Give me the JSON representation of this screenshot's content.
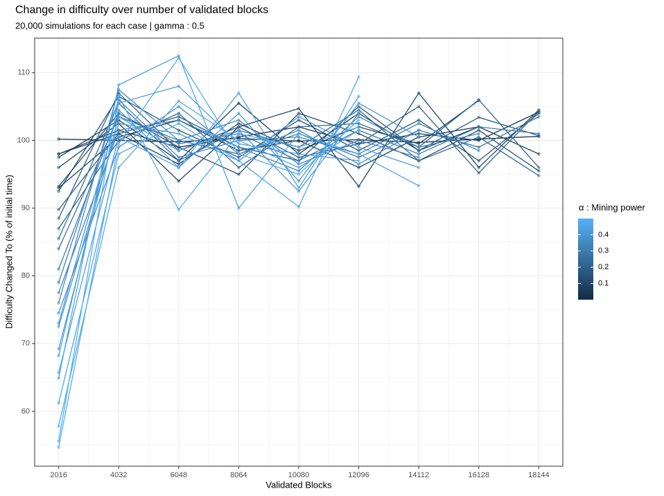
{
  "chart_data": {
    "type": "line",
    "title": "Change in difficulty over number of validated blocks",
    "subtitle": "20,000 simulations for each case | gamma : 0.5",
    "x_label": "Validated Blocks",
    "y_label": "Difficulty Changed To (% of initial time)",
    "x": [
      2016,
      4032,
      6048,
      8064,
      10080,
      12096,
      14112,
      16128,
      18144
    ],
    "xlim": [
      1210,
      18950
    ],
    "xticks": [
      2016,
      4032,
      6048,
      8064,
      10080,
      12096,
      14112,
      16128,
      18144
    ],
    "ylim": [
      51.9,
      115.1
    ],
    "yticks": [
      60,
      70,
      80,
      90,
      100,
      110
    ],
    "grid": true,
    "legend": {
      "title": "α : Mining power",
      "position": "right",
      "lim": [
        0.0,
        0.5
      ],
      "ticks": [
        0.1,
        0.2,
        0.3,
        0.4
      ],
      "colors": [
        "#132B43",
        "#56B1F7"
      ]
    },
    "series": [
      {
        "alpha": 0.02,
        "values": [
          100.2,
          100,
          99.8,
          100.3,
          99.9,
          100.1,
          99.7,
          100.2,
          100.6
        ]
      },
      {
        "alpha": 0.05,
        "values": [
          98,
          101.5,
          99,
          100.5,
          102,
          99.5,
          101,
          100,
          104.2
        ]
      },
      {
        "alpha": 0.06,
        "values": [
          93,
          100.5,
          103,
          98.5,
          100,
          96,
          100.5,
          102,
          null
        ]
      },
      {
        "alpha": 0.08,
        "values": [
          97.5,
          103,
          97,
          105.5,
          98,
          104,
          98.5,
          102,
          98
        ]
      },
      {
        "alpha": 0.09,
        "values": [
          98,
          101,
          96.5,
          102.5,
          98.5,
          102,
          99.5,
          105.9,
          null
        ]
      },
      {
        "alpha": 0.1,
        "values": [
          96,
          102.5,
          94,
          102,
          104.7,
          93.2,
          107,
          96,
          104.5
        ]
      },
      {
        "alpha": 0.12,
        "values": [
          93.2,
          104,
          99,
          95,
          104,
          101,
          97,
          101.5,
          95.5
        ]
      },
      {
        "alpha": 0.15,
        "values": [
          92.5,
          106.5,
          101.5,
          97.5,
          103,
          98.5,
          103,
          97,
          104
        ]
      },
      {
        "alpha": 0.18,
        "values": [
          89.8,
          101,
          103.5,
          99,
          97,
          105,
          98.5,
          103.4,
          100.7
        ]
      },
      {
        "alpha": 0.2,
        "values": [
          88.5,
          107,
          98.5,
          102,
          97.5,
          99.5,
          105,
          95.2,
          104.3
        ]
      },
      {
        "alpha": 0.22,
        "values": [
          87,
          100,
          104,
          96,
          102,
          102.5,
          99,
          106,
          96
        ]
      },
      {
        "alpha": 0.25,
        "values": [
          85.5,
          105.5,
          97,
          101.5,
          99,
          104.5,
          97,
          100.5,
          94.8
        ]
      },
      {
        "alpha": 0.27,
        "values": [
          84,
          103.5,
          100,
          98,
          101,
          97.5,
          101.5,
          99,
          103.5
        ]
      },
      {
        "alpha": 0.3,
        "values": [
          81,
          104,
          99.5,
          101,
          97,
          101.5,
          98,
          102,
          101
        ]
      },
      {
        "alpha": 0.32,
        "values": [
          79,
          106,
          97.5,
          100,
          100.5,
          98,
          102.5,
          98.5,
          null
        ]
      },
      {
        "alpha": 0.34,
        "values": [
          77.5,
          101.5,
          103,
          99,
          95.5,
          103.5,
          99,
          101,
          null
        ]
      },
      {
        "alpha": 0.36,
        "values": [
          76,
          107.5,
          100,
          103,
          96.5,
          100,
          97.5,
          null,
          null
        ]
      },
      {
        "alpha": 0.38,
        "values": [
          74.5,
          99,
          105,
          98,
          101.5,
          96.5,
          101.5,
          null,
          null
        ]
      },
      {
        "alpha": 0.4,
        "values": [
          73,
          104.5,
          96,
          104,
          94,
          105.5,
          100.5,
          null,
          null
        ]
      },
      {
        "alpha": 0.41,
        "values": [
          72.5,
          102.5,
          101,
          97,
          103.5,
          99,
          96,
          null,
          null
        ]
      },
      {
        "alpha": 0.42,
        "values": [
          69.2,
          103.5,
          98.5,
          101.5,
          92.5,
          104,
          null,
          null,
          null
        ]
      },
      {
        "alpha": 0.43,
        "values": [
          68.2,
          105.5,
          108,
          99.5,
          98,
          97,
          null,
          null,
          null
        ]
      },
      {
        "alpha": 0.44,
        "values": [
          65.7,
          100.5,
          96,
          107,
          93,
          106.5,
          null,
          null,
          null
        ]
      },
      {
        "alpha": 0.45,
        "values": [
          64.9,
          108.2,
          112.5,
          90,
          101,
          98,
          93.3,
          null,
          null
        ]
      },
      {
        "alpha": 0.46,
        "values": [
          61.2,
          98,
          102.5,
          97,
          90.2,
          109.4,
          null,
          null,
          null
        ]
      },
      {
        "alpha": 0.47,
        "values": [
          57.8,
          96,
          105.8,
          100,
          96,
          101.5,
          null,
          null,
          null
        ]
      },
      {
        "alpha": 0.48,
        "values": [
          55.6,
          106.5,
          89.8,
          101,
          99,
          102,
          null,
          null,
          null
        ]
      },
      {
        "alpha": 0.48,
        "values": [
          54.7,
          99.5,
          112.2,
          98,
          95,
          103,
          null,
          null,
          null
        ]
      }
    ]
  }
}
